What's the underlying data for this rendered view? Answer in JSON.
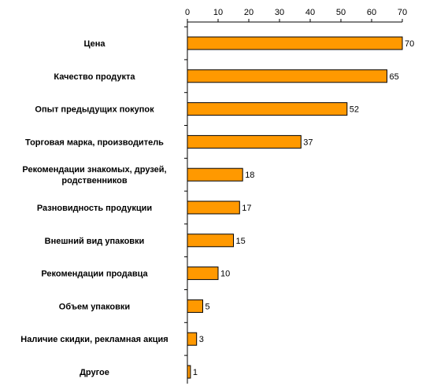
{
  "chart_data": {
    "type": "bar",
    "orientation": "horizontal",
    "title": "",
    "xlabel": "",
    "ylabel": "",
    "xlim": [
      0,
      70
    ],
    "x_ticks": [
      0,
      10,
      20,
      30,
      40,
      50,
      60,
      70
    ],
    "x_axis_position": "top",
    "grid": false,
    "legend": "none",
    "bar_color": "#ff9900",
    "bar_edge_color": "#000000",
    "categories": [
      [
        "Цена"
      ],
      [
        "Качество продукта"
      ],
      [
        "Опыт предыдущих покупок"
      ],
      [
        "Торговая марка, производитель"
      ],
      [
        "Рекомендации знакомых, друзей,",
        "родственников"
      ],
      [
        "Разновидность продукции"
      ],
      [
        "Внешний вид упаковки"
      ],
      [
        "Рекомендации продавца"
      ],
      [
        "Объем упаковки"
      ],
      [
        "Наличие скидки, рекламная акция"
      ],
      [
        "Другое"
      ]
    ],
    "values": [
      70,
      65,
      52,
      37,
      18,
      17,
      15,
      10,
      5,
      3,
      1
    ]
  }
}
